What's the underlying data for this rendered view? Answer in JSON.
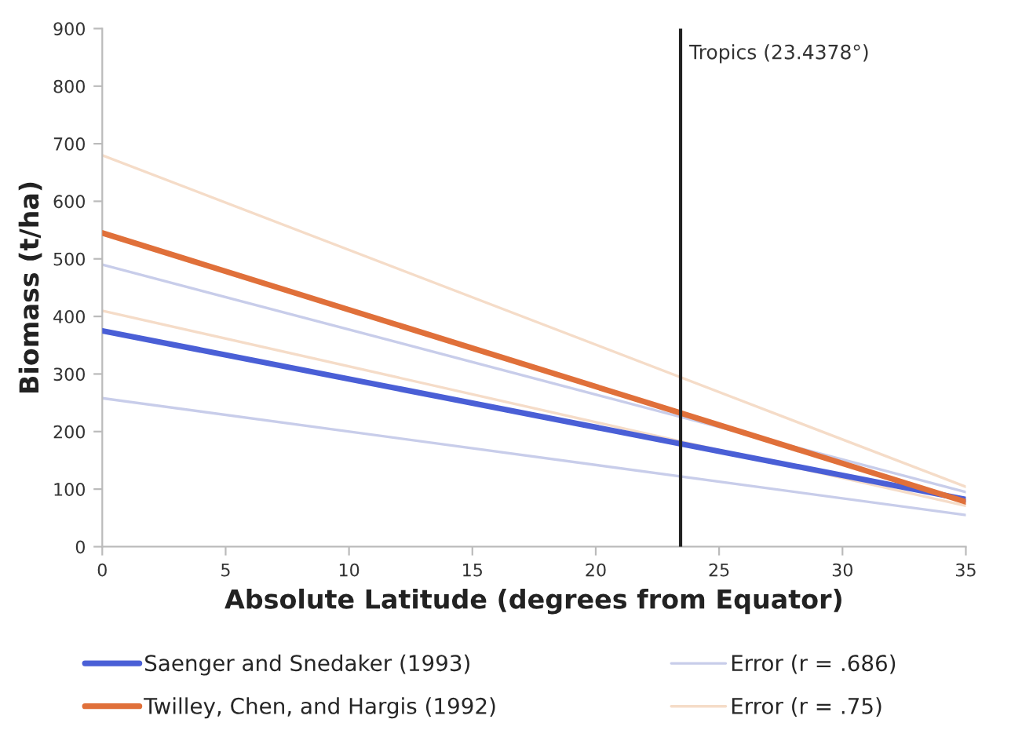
{
  "chart_data": {
    "type": "line",
    "xlabel": "Absolute Latitude (degrees from Equator)",
    "ylabel": "Biomass (t/ha)",
    "x": [
      0,
      35
    ],
    "series": [
      {
        "name": "Saenger and Snedaker (1993)",
        "color": "#4a5fd6",
        "values": [
          375,
          82
        ]
      },
      {
        "name": "Error (r = .686)",
        "color": "#c8cdea",
        "values": [
          490,
          95
        ]
      },
      {
        "color": "#c8cdea",
        "values": [
          258,
          55
        ]
      },
      {
        "name": "Twilley, Chen, and Hargis (1992)",
        "color": "#e0703a",
        "values": [
          545,
          78
        ]
      },
      {
        "name": "Error (r = .75)",
        "color": "#f5dcc8",
        "values": [
          680,
          104
        ]
      },
      {
        "color": "#f5dcc8",
        "values": [
          410,
          71
        ]
      }
    ],
    "xlim": [
      0,
      35
    ],
    "xticks": [
      0,
      5,
      10,
      15,
      20,
      25,
      30,
      35
    ],
    "ylim": [
      0,
      900
    ],
    "yticks": [
      0,
      100,
      200,
      300,
      400,
      500,
      600,
      700,
      800,
      900
    ],
    "ref_lines": [
      {
        "axis": "x",
        "value": 23.4378,
        "label": "Tropics (23.4378°)",
        "color": "#222222"
      }
    ],
    "grid": false,
    "legend": "bottom",
    "marker": "none",
    "line_style": "solid"
  }
}
